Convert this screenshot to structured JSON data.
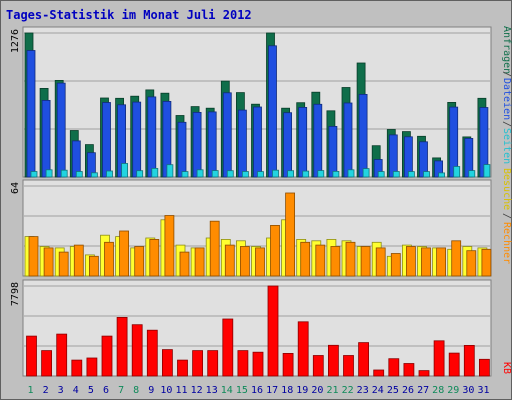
{
  "title": "Tages-Statistik im Monat Juli 2012",
  "colors": {
    "background": "#c0c0c0",
    "panel": "#e0e0e0",
    "title": "#0000c0",
    "anfragen": "#0f6e4a",
    "dateien": "#1f4fe0",
    "seiten": "#22d4e0",
    "besuche": "#ffff30",
    "rechner": "#ff8c00",
    "kb": "#ff0000",
    "weekend_label": "#0f8a5a",
    "weekday_label": "#0000a0"
  },
  "chart_data": [
    {
      "type": "bar",
      "panel": "top",
      "ymax_label": "1276",
      "ylim": [
        0,
        1276
      ],
      "grid": true,
      "series": [
        {
          "name": "Anfragen",
          "color": "#0f6e4a",
          "values": [
            1276,
            785,
            856,
            412,
            287,
            700,
            697,
            716,
            772,
            743,
            545,
            624,
            610,
            850,
            748,
            645,
            1276,
            610,
            658,
            751,
            587,
            793,
            1010,
            277,
            421,
            402,
            361,
            169,
            661,
            355,
            697
          ]
        },
        {
          "name": "Dateien",
          "color": "#1f4fe0",
          "values": [
            1121,
            679,
            832,
            320,
            215,
            660,
            640,
            664,
            710,
            670,
            485,
            572,
            577,
            746,
            593,
            620,
            1163,
            570,
            617,
            644,
            448,
            656,
            732,
            155,
            373,
            356,
            312,
            143,
            619,
            342,
            616
          ]
        },
        {
          "name": "Seiten",
          "color": "#22d4e0",
          "values": [
            49,
            64,
            60,
            49,
            37,
            53,
            120,
            56,
            76,
            109,
            48,
            64,
            57,
            56,
            49,
            48,
            60,
            56,
            52,
            57,
            50,
            64,
            74,
            48,
            49,
            48,
            48,
            36,
            93,
            57,
            110
          ]
        }
      ]
    },
    {
      "type": "bar",
      "panel": "middle",
      "ymax_label": "64",
      "ylim": [
        0,
        64
      ],
      "grid": true,
      "series": [
        {
          "name": "Besuche",
          "color": "#ffff30",
          "values": [
            28,
            21,
            20,
            21,
            15,
            29,
            28,
            20,
            27,
            40,
            22,
            20,
            27,
            26,
            25,
            21,
            27,
            40,
            26,
            25,
            26,
            25,
            21,
            24,
            14,
            22,
            21,
            20,
            19,
            21,
            20
          ]
        },
        {
          "name": "Rechner",
          "color": "#ff8c00",
          "values": [
            28,
            20,
            17,
            22,
            14,
            24,
            32,
            21,
            26,
            43,
            17,
            20,
            39,
            22,
            21,
            20,
            36,
            59,
            24,
            22,
            21,
            24,
            21,
            20,
            16,
            21,
            20,
            20,
            25,
            18,
            19
          ]
        }
      ]
    },
    {
      "type": "bar",
      "panel": "bottom",
      "ymax_label": "7798",
      "ylim": [
        0,
        7798
      ],
      "grid": true,
      "series": [
        {
          "name": "KB",
          "color": "#ff0000",
          "values": [
            3460,
            2199,
            3630,
            1380,
            1560,
            3460,
            5080,
            4449,
            3970,
            2290,
            1380,
            2199,
            2199,
            4939,
            2199,
            2059,
            7798,
            1960,
            4699,
            1780,
            2659,
            1780,
            2890,
            520,
            1500,
            1080,
            470,
            3050,
            1980,
            2650,
            1450
          ]
        }
      ]
    }
  ],
  "x_labels": [
    "1",
    "2",
    "3",
    "4",
    "5",
    "6",
    "7",
    "8",
    "9",
    "10",
    "11",
    "12",
    "13",
    "14",
    "15",
    "16",
    "17",
    "18",
    "19",
    "20",
    "21",
    "22",
    "23",
    "24",
    "25",
    "26",
    "27",
    "28",
    "29",
    "30",
    "31"
  ],
  "weekend_days": [
    1,
    7,
    8,
    14,
    15,
    21,
    22,
    28,
    29
  ],
  "right_labels": {
    "top": {
      "anfragen": "Anfragen",
      "dateien": "Dateien",
      "seiten": "Seiten",
      "sep": "/"
    },
    "middle": {
      "besuche": "Besuche",
      "rechner": "Rechner",
      "sep": "/"
    },
    "bottom": {
      "kb": "KB"
    }
  }
}
